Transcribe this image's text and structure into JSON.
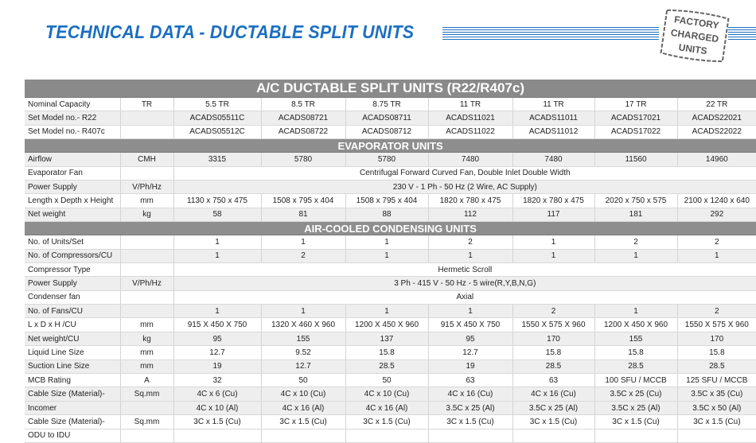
{
  "page_title": "TECHNICAL DATA - DUCTABLE SPLIT UNITS",
  "stamp": {
    "line1": "FACTORY",
    "line2": "CHARGED",
    "line3": "UNITS"
  },
  "table": {
    "main_header": "A/C DUCTABLE SPLIT UNITS (R22/R407c)",
    "general_rows": [
      {
        "label": "Nominal Capacity",
        "unit": "TR",
        "values": [
          "5.5 TR",
          "8.5 TR",
          "8.75 TR",
          "11 TR",
          "11 TR",
          "17 TR",
          "22 TR"
        ]
      },
      {
        "label": "Set Model no.- R22",
        "unit": "",
        "values": [
          "ACADS05511C",
          "ACADS08721",
          "ACADS08711",
          "ACADS11021",
          "ACADS11011",
          "ACADS17021",
          "ACADS22021"
        ]
      },
      {
        "label": "Set Model no.- R407c",
        "unit": "",
        "values": [
          "ACADS05512C",
          "ACADS08722",
          "ACADS08712",
          "ACADS11022",
          "ACADS11012",
          "ACADS17022",
          "ACADS22022"
        ]
      }
    ],
    "evaporator_header": "EVAPORATOR UNITS",
    "evaporator_rows": [
      {
        "label": "Airflow",
        "unit": "CMH",
        "values": [
          "3315",
          "5780",
          "5780",
          "7480",
          "7480",
          "11560",
          "14960"
        ]
      },
      {
        "label": "Evaporator Fan",
        "unit": "",
        "span": "Centrifugal Forward Curved Fan, Double Inlet Double Width"
      },
      {
        "label": "Power Supply",
        "unit": "V/Ph/Hz",
        "span": "230 V - 1 Ph - 50 Hz (2 Wire, AC Supply)"
      },
      {
        "label": "Length x Depth x Height",
        "unit": "mm",
        "values": [
          "1130 x 750 x 475",
          "1508 x 795 x 404",
          "1508 x 795 x 404",
          "1820 x 780 x 475",
          "1820 x 780 x 475",
          "2020 x 750 x 575",
          "2100 x 1240 x 640"
        ]
      },
      {
        "label": "Net weight",
        "unit": "kg",
        "values": [
          "58",
          "81",
          "88",
          "112",
          "117",
          "181",
          "292"
        ]
      }
    ],
    "condensing_header": "AIR-COOLED CONDENSING UNITS",
    "condensing_rows": [
      {
        "label": "No. of Units/Set",
        "unit": "",
        "values": [
          "1",
          "1",
          "1",
          "2",
          "1",
          "2",
          "2"
        ]
      },
      {
        "label": "No. of Compressors/CU",
        "unit": "",
        "values": [
          "1",
          "2",
          "1",
          "1",
          "1",
          "1",
          "1"
        ]
      },
      {
        "label": "Compressor Type",
        "unit": "",
        "span": "Hermetic Scroll"
      },
      {
        "label": "Power Supply",
        "unit": "V/Ph/Hz",
        "span": "3 Ph - 415 V - 50 Hz - 5 wire(R,Y,B,N,G)"
      },
      {
        "label": "Condenser fan",
        "unit": "",
        "span": "Axial"
      },
      {
        "label": "No. of Fans/CU",
        "unit": "",
        "values": [
          "1",
          "1",
          "1",
          "1",
          "2",
          "1",
          "2"
        ]
      },
      {
        "label": "L x D x H /CU",
        "unit": "mm",
        "values": [
          "915 X 450 X 750",
          "1320 X 460 X 960",
          "1200 X 450 X 960",
          "915 X 450 X 750",
          "1550 X 575 X 960",
          "1200 X 450 X 960",
          "1550 X 575 X 960"
        ]
      },
      {
        "label": "Net weight/CU",
        "unit": "kg",
        "values": [
          "95",
          "155",
          "137",
          "95",
          "170",
          "155",
          "170"
        ]
      },
      {
        "label": "Liquid Line Size",
        "unit": "mm",
        "values": [
          "12.7",
          "9.52",
          "15.8",
          "12.7",
          "15.8",
          "15.8",
          "15.8"
        ]
      },
      {
        "label": "Suction Line Size",
        "unit": "mm",
        "values": [
          "19",
          "12.7",
          "28.5",
          "19",
          "28.5",
          "28.5",
          "28.5"
        ]
      },
      {
        "label": "MCB Rating",
        "unit": "A",
        "values": [
          "32",
          "50",
          "50",
          "63",
          "63",
          "100 SFU / MCCB",
          "125 SFU / MCCB"
        ]
      }
    ],
    "cable_incomer": {
      "label1": "Cable Size (Material)-",
      "label2": "Incomer",
      "unit": "Sq.mm",
      "values1": [
        "4C x 6 (Cu)",
        "4C x 10 (Cu)",
        "4C x 10 (Cu)",
        "4C x 16 (Cu)",
        "4C x 16 (Cu)",
        "3.5C x 25 (Cu)",
        "3.5C x 35 (Cu)"
      ],
      "values2": [
        "4C x 10 (Al)",
        "4C x 16 (Al)",
        "4C x 16 (Al)",
        "3.5C x 25 (Al)",
        "3.5C x 25 (Al)",
        "3.5C x 25 (Al)",
        "3.5C x 50 (Al)"
      ]
    },
    "cable_odu": {
      "label1": "Cable Size (Material)-",
      "label2": "ODU to IDU",
      "unit": "Sq.mm",
      "values": [
        "3C x 1.5 (Cu)",
        "3C x 1.5 (Cu)",
        "3C x 1.5 (Cu)",
        "3C x 1.5 (Cu)",
        "3C x 1.5 (Cu)",
        "3C x 1.5 (Cu)",
        "3C x 1.5 (Cu)"
      ]
    }
  }
}
